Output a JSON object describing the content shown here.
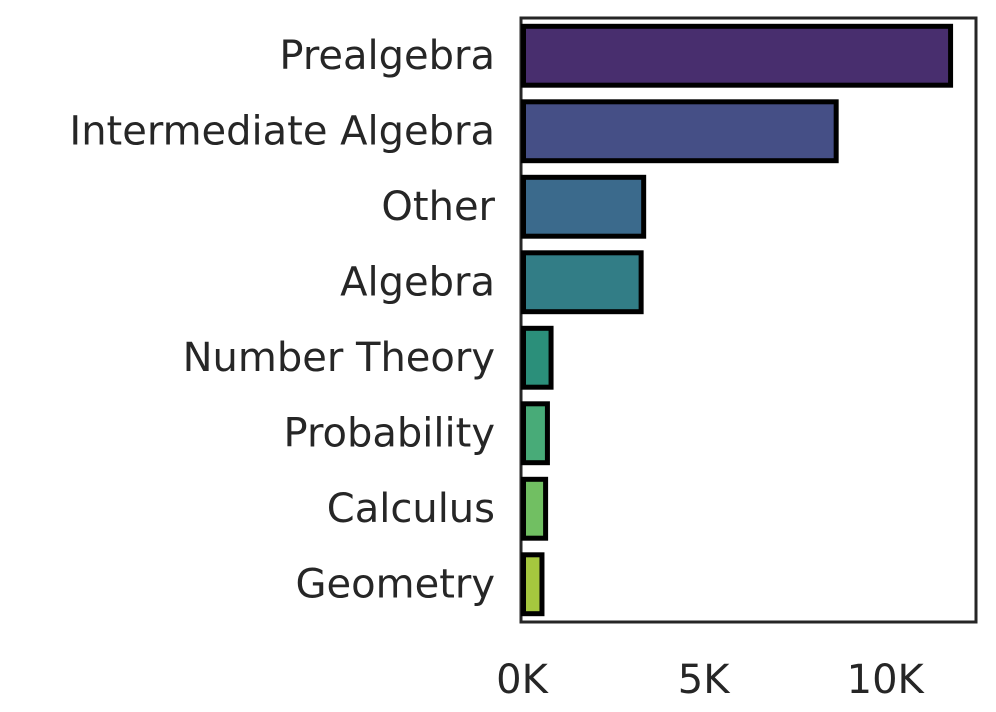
{
  "chart_data": {
    "type": "bar",
    "orientation": "horizontal",
    "title": "",
    "xlabel": "",
    "ylabel": "",
    "categories": [
      "Prealgebra",
      "Intermediate Algebra",
      "Other",
      "Algebra",
      "Number Theory",
      "Probability",
      "Calculus",
      "Geometry"
    ],
    "values": [
      11800,
      8650,
      3350,
      3280,
      800,
      700,
      650,
      550
    ],
    "xlim": [
      0,
      12500
    ],
    "x_ticks": [
      0,
      5000,
      10000
    ],
    "x_tick_labels": [
      "0K",
      "5K",
      "10K"
    ],
    "grid": false,
    "legend": "none",
    "bar_colors": [
      "#482e6e",
      "#454f86",
      "#3b6a8c",
      "#327d86",
      "#2b8f7a",
      "#48ab78",
      "#71bf62",
      "#a5c73e"
    ],
    "bar_edge_color": "#000000",
    "axis_color": "#262626"
  }
}
